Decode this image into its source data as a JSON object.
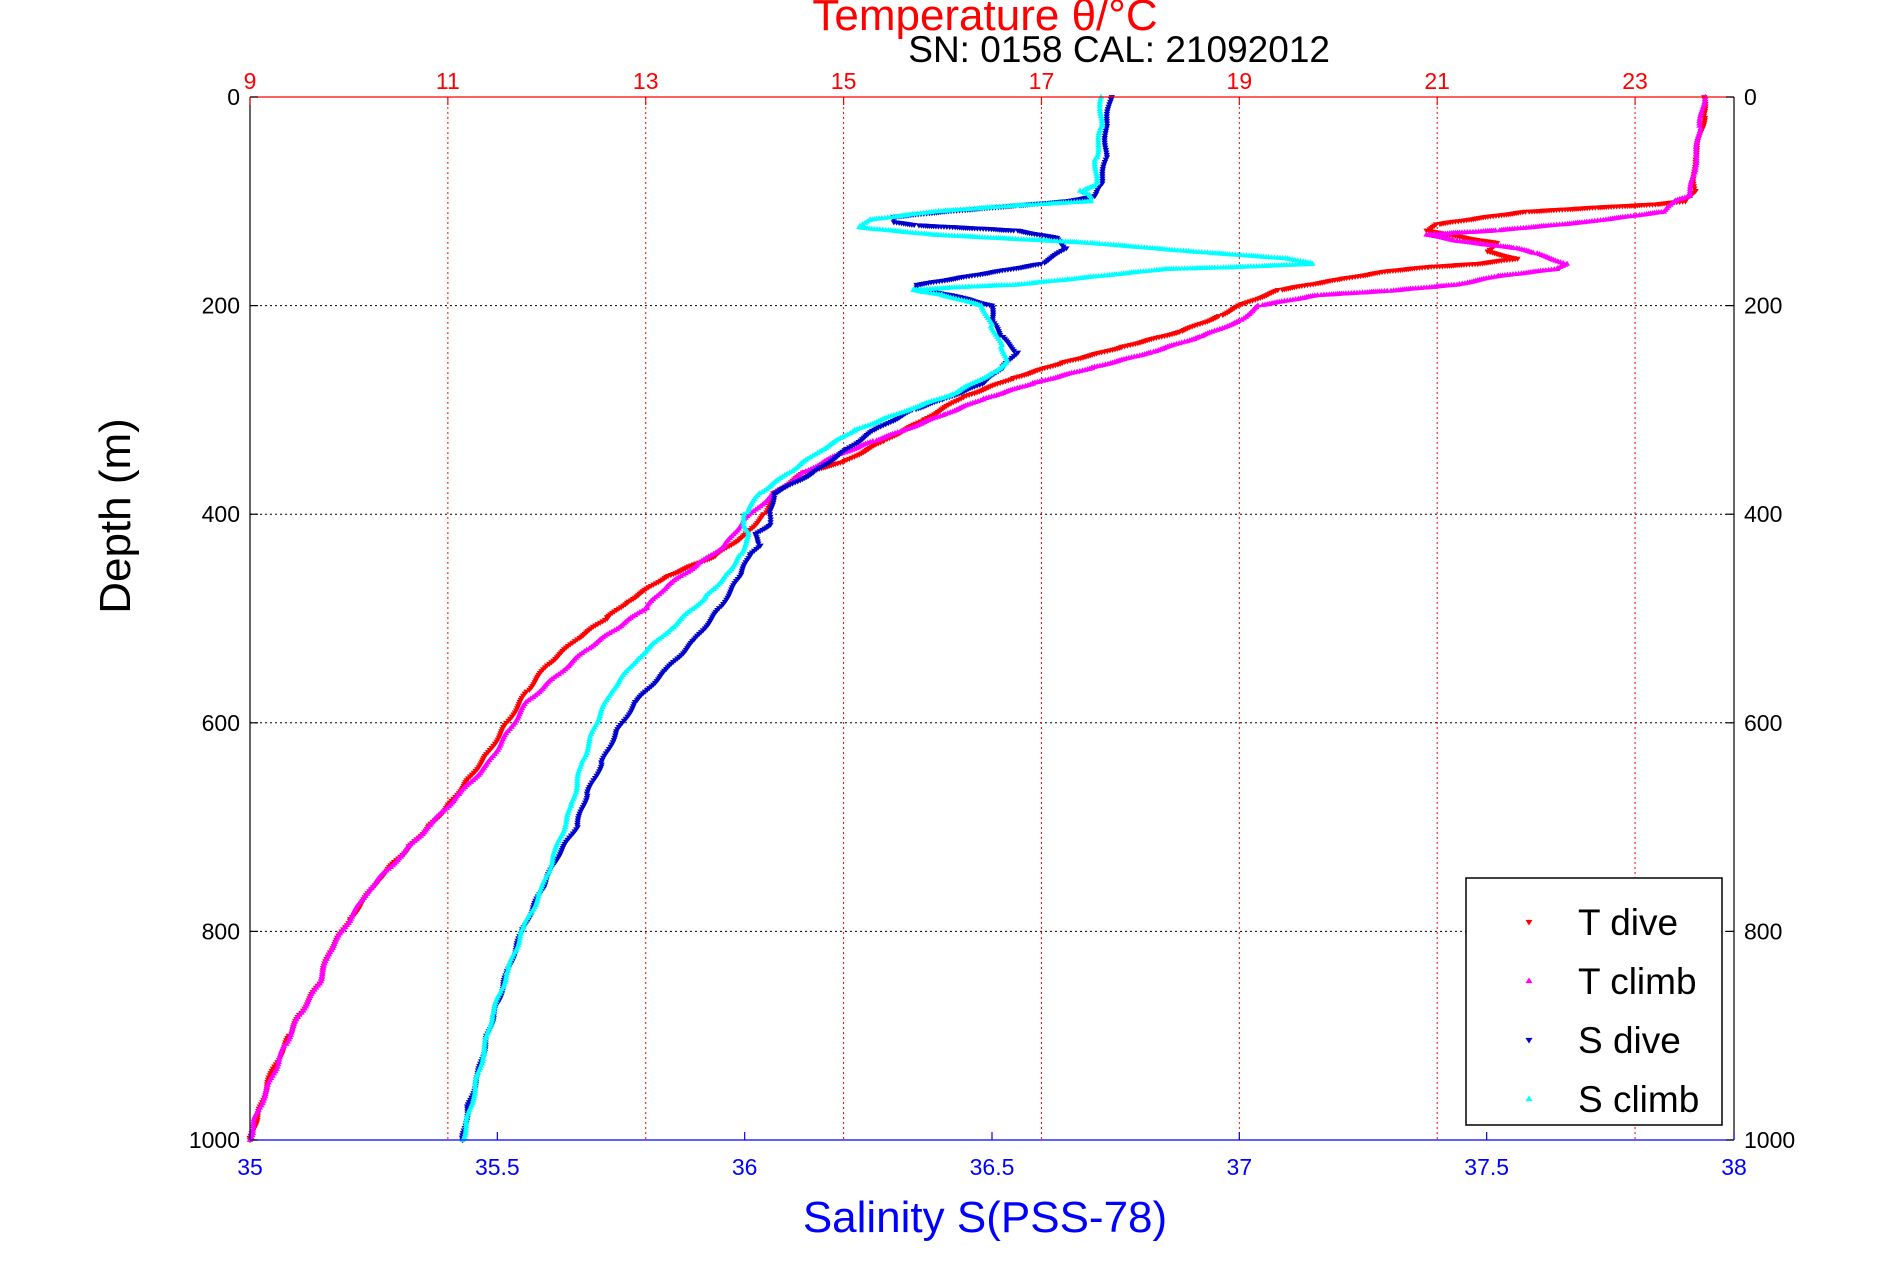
{
  "chart_data": {
    "type": "scatter",
    "title": "Temperature θ/°C",
    "annotation": "SN: 0158  CAL: 21092012",
    "ylabel": "Depth (m)",
    "xlabel_bottom": "Salinity S(PSS-78)",
    "xlabel_top": "Temperature θ/°C",
    "y_ticks": [
      0,
      200,
      400,
      600,
      800,
      1000
    ],
    "y_reversed": true,
    "ylim": [
      0,
      1000
    ],
    "x_bottom_ticks": [
      35,
      35.5,
      36,
      36.5,
      37,
      37.5,
      38
    ],
    "x_bottom_tick_labels": [
      "35",
      "35.5",
      "36",
      "36.5",
      "37",
      "37.5",
      "38"
    ],
    "xlim_bottom": [
      35,
      38
    ],
    "x_top_ticks": [
      9,
      11,
      13,
      15,
      17,
      19,
      21,
      23
    ],
    "xlim_top": [
      9,
      24
    ],
    "grid": true,
    "legend_position": "bottom-right",
    "colors": {
      "temperature_axis": "#ff0000",
      "salinity_axis": "#0000ff",
      "t_dive": "#ff0000",
      "t_climb": "#ff00ff",
      "s_dive": "#0000cc",
      "s_climb": "#00ffff"
    },
    "series": [
      {
        "name": "T dive",
        "axis": "temperature",
        "marker": "triangle-down",
        "color": "#ff0000",
        "points": [
          [
            23.7,
            0
          ],
          [
            23.7,
            20
          ],
          [
            23.6,
            60
          ],
          [
            23.6,
            90
          ],
          [
            23.5,
            100
          ],
          [
            23.2,
            103
          ],
          [
            22.6,
            106
          ],
          [
            21.9,
            110
          ],
          [
            21.5,
            115
          ],
          [
            21.0,
            122
          ],
          [
            20.9,
            128
          ],
          [
            21.1,
            132
          ],
          [
            21.6,
            140
          ],
          [
            21.5,
            148
          ],
          [
            21.8,
            155
          ],
          [
            21.4,
            160
          ],
          [
            20.9,
            163
          ],
          [
            20.5,
            167
          ],
          [
            20.0,
            175
          ],
          [
            19.4,
            185
          ],
          [
            19.0,
            200
          ],
          [
            18.8,
            210
          ],
          [
            18.4,
            225
          ],
          [
            17.8,
            240
          ],
          [
            17.2,
            255
          ],
          [
            16.7,
            270
          ],
          [
            16.2,
            288
          ],
          [
            15.8,
            310
          ],
          [
            15.4,
            330
          ],
          [
            15.0,
            350
          ],
          [
            14.6,
            360
          ],
          [
            14.3,
            380
          ],
          [
            14.2,
            400
          ],
          [
            14.0,
            420
          ],
          [
            13.7,
            440
          ],
          [
            13.2,
            460
          ],
          [
            12.8,
            485
          ],
          [
            12.6,
            500
          ],
          [
            12.3,
            520
          ],
          [
            12.0,
            545
          ],
          [
            11.8,
            570
          ],
          [
            11.6,
            600
          ],
          [
            11.4,
            630
          ],
          [
            11.2,
            655
          ],
          [
            11.0,
            680
          ],
          [
            10.8,
            700
          ],
          [
            10.6,
            720
          ],
          [
            10.3,
            750
          ],
          [
            10.0,
            790
          ],
          [
            9.8,
            820
          ],
          [
            9.7,
            850
          ],
          [
            9.5,
            880
          ],
          [
            9.4,
            900
          ],
          [
            9.2,
            940
          ],
          [
            9.1,
            970
          ],
          [
            9.0,
            1000
          ]
        ]
      },
      {
        "name": "T climb",
        "axis": "temperature",
        "marker": "triangle-up",
        "color": "#ff00ff",
        "points": [
          [
            23.7,
            0
          ],
          [
            23.65,
            30
          ],
          [
            23.6,
            70
          ],
          [
            23.55,
            95
          ],
          [
            23.4,
            100
          ],
          [
            23.3,
            110
          ],
          [
            22.5,
            120
          ],
          [
            21.6,
            128
          ],
          [
            20.9,
            132
          ],
          [
            21.2,
            138
          ],
          [
            21.8,
            145
          ],
          [
            22.0,
            150
          ],
          [
            22.3,
            160
          ],
          [
            22.2,
            165
          ],
          [
            21.6,
            172
          ],
          [
            21.2,
            180
          ],
          [
            20.5,
            186
          ],
          [
            19.8,
            190
          ],
          [
            19.2,
            200
          ],
          [
            19.0,
            215
          ],
          [
            18.6,
            230
          ],
          [
            18.1,
            245
          ],
          [
            17.5,
            260
          ],
          [
            16.9,
            275
          ],
          [
            16.4,
            290
          ],
          [
            16.0,
            305
          ],
          [
            15.6,
            320
          ],
          [
            15.3,
            330
          ],
          [
            14.9,
            345
          ],
          [
            14.6,
            360
          ],
          [
            14.3,
            380
          ],
          [
            14.0,
            405
          ],
          [
            13.8,
            430
          ],
          [
            13.5,
            450
          ],
          [
            13.2,
            470
          ],
          [
            13.0,
            490
          ],
          [
            12.7,
            510
          ],
          [
            12.4,
            530
          ],
          [
            12.1,
            555
          ],
          [
            11.8,
            580
          ],
          [
            11.6,
            610
          ],
          [
            11.4,
            640
          ],
          [
            11.1,
            670
          ],
          [
            10.8,
            700
          ],
          [
            10.5,
            730
          ],
          [
            10.2,
            760
          ],
          [
            10.0,
            790
          ],
          [
            9.8,
            820
          ],
          [
            9.7,
            850
          ],
          [
            9.5,
            880
          ],
          [
            9.35,
            910
          ],
          [
            9.2,
            945
          ],
          [
            9.05,
            980
          ],
          [
            9.0,
            1000
          ]
        ]
      },
      {
        "name": "S dive",
        "axis": "salinity",
        "marker": "triangle-down",
        "color": "#0000cc",
        "points": [
          [
            36.74,
            0
          ],
          [
            36.73,
            30
          ],
          [
            36.73,
            60
          ],
          [
            36.72,
            85
          ],
          [
            36.71,
            95
          ],
          [
            36.65,
            100
          ],
          [
            36.55,
            104
          ],
          [
            36.4,
            110
          ],
          [
            36.3,
            115
          ],
          [
            36.3,
            120
          ],
          [
            36.35,
            123
          ],
          [
            36.55,
            128
          ],
          [
            36.63,
            135
          ],
          [
            36.65,
            145
          ],
          [
            36.6,
            160
          ],
          [
            36.45,
            172
          ],
          [
            36.35,
            180
          ],
          [
            36.35,
            185
          ],
          [
            36.42,
            190
          ],
          [
            36.5,
            200
          ],
          [
            36.5,
            215
          ],
          [
            36.52,
            230
          ],
          [
            36.55,
            245
          ],
          [
            36.52,
            260
          ],
          [
            36.48,
            275
          ],
          [
            36.4,
            290
          ],
          [
            36.34,
            300
          ],
          [
            36.26,
            320
          ],
          [
            36.2,
            340
          ],
          [
            36.14,
            360
          ],
          [
            36.06,
            380
          ],
          [
            36.05,
            400
          ],
          [
            36.05,
            410
          ],
          [
            36.02,
            420
          ],
          [
            36.03,
            430
          ],
          [
            36.01,
            440
          ],
          [
            35.99,
            460
          ],
          [
            35.95,
            490
          ],
          [
            35.9,
            520
          ],
          [
            35.84,
            550
          ],
          [
            35.78,
            580
          ],
          [
            35.74,
            610
          ],
          [
            35.71,
            640
          ],
          [
            35.68,
            670
          ],
          [
            35.66,
            700
          ],
          [
            35.62,
            730
          ],
          [
            35.59,
            760
          ],
          [
            35.55,
            800
          ],
          [
            35.52,
            840
          ],
          [
            35.5,
            870
          ],
          [
            35.48,
            900
          ],
          [
            35.46,
            940
          ],
          [
            35.44,
            970
          ],
          [
            35.43,
            1000
          ]
        ]
      },
      {
        "name": "S climb",
        "axis": "salinity",
        "marker": "triangle-up",
        "color": "#00ffff",
        "points": [
          [
            36.72,
            0
          ],
          [
            36.72,
            30
          ],
          [
            36.71,
            60
          ],
          [
            36.71,
            85
          ],
          [
            36.68,
            90
          ],
          [
            36.7,
            95
          ],
          [
            36.7,
            100
          ],
          [
            36.55,
            104
          ],
          [
            36.38,
            110
          ],
          [
            36.25,
            118
          ],
          [
            36.23,
            125
          ],
          [
            36.38,
            132
          ],
          [
            36.7,
            140
          ],
          [
            36.9,
            148
          ],
          [
            37.1,
            155
          ],
          [
            37.15,
            160
          ],
          [
            37.0,
            163
          ],
          [
            36.85,
            165
          ],
          [
            36.75,
            170
          ],
          [
            36.65,
            175
          ],
          [
            36.55,
            180
          ],
          [
            36.45,
            182
          ],
          [
            36.34,
            185
          ],
          [
            36.4,
            190
          ],
          [
            36.48,
            200
          ],
          [
            36.5,
            220
          ],
          [
            36.52,
            240
          ],
          [
            36.53,
            255
          ],
          [
            36.5,
            265
          ],
          [
            36.42,
            285
          ],
          [
            36.33,
            300
          ],
          [
            36.22,
            320
          ],
          [
            36.15,
            340
          ],
          [
            36.09,
            360
          ],
          [
            36.03,
            380
          ],
          [
            36.0,
            400
          ],
          [
            36.0,
            410
          ],
          [
            36.01,
            420
          ],
          [
            35.99,
            440
          ],
          [
            35.96,
            460
          ],
          [
            35.92,
            480
          ],
          [
            35.85,
            510
          ],
          [
            35.78,
            540
          ],
          [
            35.73,
            570
          ],
          [
            35.7,
            600
          ],
          [
            35.67,
            640
          ],
          [
            35.65,
            680
          ],
          [
            35.62,
            720
          ],
          [
            35.59,
            760
          ],
          [
            35.55,
            800
          ],
          [
            35.52,
            840
          ],
          [
            35.49,
            880
          ],
          [
            35.47,
            920
          ],
          [
            35.45,
            960
          ],
          [
            35.43,
            1000
          ]
        ]
      }
    ]
  }
}
